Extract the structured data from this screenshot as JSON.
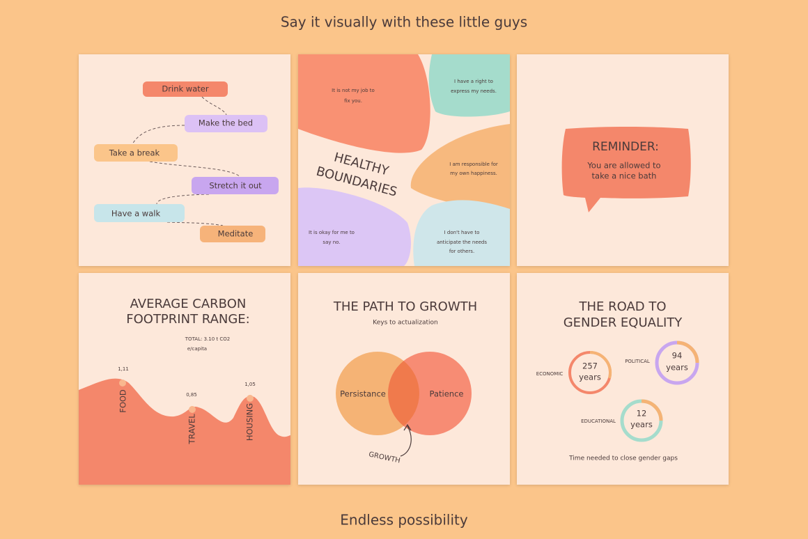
{
  "header": {
    "title": "Say it visually with these little guys"
  },
  "checklist": {
    "steps": [
      "Drink water",
      "Make the bed",
      "Take a break",
      "Stretch it out",
      "Have a walk",
      "Meditate"
    ]
  },
  "boundaries": {
    "title_lines": [
      "HEALTHY",
      "BOUNDARIES"
    ],
    "statements": [
      [
        "It is not my job to",
        "fix you."
      ],
      [
        "I have a right to",
        "express my needs."
      ],
      [
        "I am responsible for",
        "my own happiness."
      ],
      [
        "It is okay for me to",
        "say no."
      ],
      [
        "I don't have to",
        "anticipate the needs",
        "for others."
      ]
    ]
  },
  "reminder": {
    "title": "REMINDER:",
    "lines": [
      "You are allowed to",
      "take a nice bath"
    ]
  },
  "carbon": {
    "title_lines": [
      "AVERAGE CARBON",
      "FOOTPRINT RANGE:"
    ],
    "note_lines": [
      "TOTAL: 3.10 t CO2",
      "e/capita"
    ],
    "points": [
      {
        "label": "FOOD",
        "value": "1,11"
      },
      {
        "label": "TRAVEL",
        "value": "0,85"
      },
      {
        "label": "HOUSING",
        "value": "1,05"
      }
    ]
  },
  "growth": {
    "title": "THE PATH TO GROWTH",
    "subtitle": "Keys to actualization",
    "left": "Persistance",
    "right": "Patience",
    "overlap": "GROWTH"
  },
  "gender": {
    "title_lines": [
      "THE ROAD TO",
      "GENDER EQUALITY"
    ],
    "rings": [
      {
        "label": "ECONOMIC",
        "value": "257",
        "unit": "years"
      },
      {
        "label": "POLITICAL",
        "value": "94",
        "unit": "years"
      },
      {
        "label": "EDUCATIONAL",
        "value": "12",
        "unit": "years"
      }
    ],
    "caption": "Time needed to close gender gaps"
  },
  "footer": {
    "text": "Endless possibility"
  }
}
